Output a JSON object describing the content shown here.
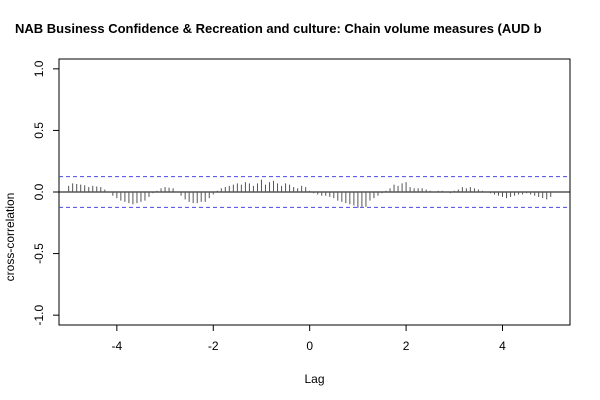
{
  "chart_data": {
    "type": "bar",
    "title": "NAB Business Confidence & Recreation and culture: Chain volume measures (AUD b",
    "xlabel": "Lag",
    "ylabel": "cross-correlation",
    "xlim": [
      -5.2,
      5.4
    ],
    "ylim": [
      -1.08,
      1.08
    ],
    "xticks": [
      -4,
      -2,
      0,
      2,
      4
    ],
    "yticks": [
      -1.0,
      -0.5,
      0.0,
      0.5,
      1.0
    ],
    "xtick_labels": [
      "-4",
      "-2",
      "0",
      "2",
      "4"
    ],
    "ytick_labels": [
      "-1.0",
      "-0.5",
      "0.0",
      "0.5",
      "1.0"
    ],
    "confidence_limit": 0.125,
    "grid": false,
    "legend": "none",
    "colors": {
      "bars": "#555555",
      "zero_line": "#000000",
      "ci_line": "#4a4ae6",
      "frame": "#000000"
    },
    "x": [
      -5.0,
      -4.917,
      -4.833,
      -4.75,
      -4.667,
      -4.583,
      -4.5,
      -4.417,
      -4.333,
      -4.25,
      -4.167,
      -4.083,
      -4.0,
      -3.917,
      -3.833,
      -3.75,
      -3.667,
      -3.583,
      -3.5,
      -3.417,
      -3.333,
      -3.25,
      -3.167,
      -3.083,
      -3.0,
      -2.917,
      -2.833,
      -2.75,
      -2.667,
      -2.583,
      -2.5,
      -2.417,
      -2.333,
      -2.25,
      -2.167,
      -2.083,
      -2.0,
      -1.917,
      -1.833,
      -1.75,
      -1.667,
      -1.583,
      -1.5,
      -1.417,
      -1.333,
      -1.25,
      -1.167,
      -1.083,
      -1.0,
      -0.917,
      -0.833,
      -0.75,
      -0.667,
      -0.583,
      -0.5,
      -0.417,
      -0.333,
      -0.25,
      -0.167,
      -0.083,
      0.0,
      0.083,
      0.167,
      0.25,
      0.333,
      0.417,
      0.5,
      0.583,
      0.667,
      0.75,
      0.833,
      0.917,
      1.0,
      1.083,
      1.167,
      1.25,
      1.333,
      1.417,
      1.5,
      1.583,
      1.667,
      1.75,
      1.833,
      1.917,
      2.0,
      2.083,
      2.167,
      2.25,
      2.333,
      2.417,
      2.5,
      2.583,
      2.667,
      2.75,
      2.833,
      2.917,
      3.0,
      3.083,
      3.167,
      3.25,
      3.333,
      3.417,
      3.5,
      3.583,
      3.667,
      3.75,
      3.833,
      3.917,
      4.0,
      4.083,
      4.167,
      4.25,
      4.333,
      4.417,
      4.5,
      4.583,
      4.667,
      4.75,
      4.833,
      4.917,
      5.0
    ],
    "values": [
      0.05,
      0.07,
      0.065,
      0.06,
      0.055,
      0.04,
      0.05,
      0.045,
      0.04,
      0.02,
      0.0,
      -0.03,
      -0.05,
      -0.07,
      -0.08,
      -0.09,
      -0.1,
      -0.09,
      -0.08,
      -0.07,
      -0.04,
      -0.01,
      0.01,
      0.03,
      0.04,
      0.035,
      0.03,
      0.0,
      -0.03,
      -0.06,
      -0.08,
      -0.09,
      -0.09,
      -0.08,
      -0.08,
      -0.05,
      -0.02,
      0.01,
      0.03,
      0.04,
      0.05,
      0.06,
      0.07,
      0.06,
      0.08,
      0.07,
      0.05,
      0.07,
      0.1,
      0.06,
      0.08,
      0.09,
      0.07,
      0.05,
      0.07,
      0.06,
      0.04,
      0.03,
      0.05,
      0.04,
      0.01,
      -0.01,
      -0.02,
      -0.03,
      -0.03,
      -0.04,
      -0.05,
      -0.07,
      -0.08,
      -0.09,
      -0.1,
      -0.11,
      -0.13,
      -0.12,
      -0.12,
      -0.07,
      -0.05,
      -0.03,
      -0.01,
      0.01,
      0.03,
      0.06,
      0.05,
      0.07,
      0.08,
      0.04,
      0.03,
      0.03,
      0.03,
      0.02,
      0.01,
      0.0,
      0.01,
      0.01,
      0.0,
      -0.01,
      0.01,
      0.02,
      0.04,
      0.03,
      0.04,
      0.03,
      0.02,
      0.01,
      0.0,
      -0.01,
      -0.02,
      -0.03,
      -0.04,
      -0.05,
      -0.04,
      -0.03,
      -0.02,
      -0.02,
      -0.01,
      -0.02,
      -0.03,
      -0.04,
      -0.05,
      -0.06,
      -0.04
    ]
  }
}
